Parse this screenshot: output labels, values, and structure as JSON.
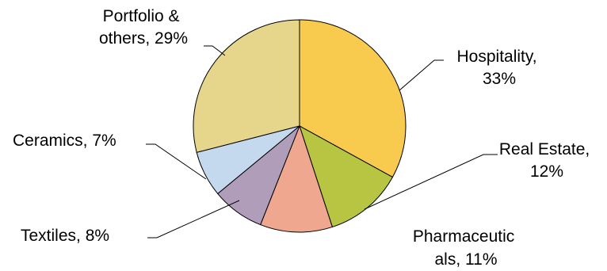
{
  "chart_data": {
    "type": "pie",
    "title": "",
    "slices": [
      {
        "name": "Hospitality",
        "value": 33,
        "color": "#f8cb4f",
        "label_lines": [
          "Hospitality,",
          "33%"
        ]
      },
      {
        "name": "Real Estate",
        "value": 12,
        "color": "#b8c542",
        "label_lines": [
          "Real Estate,",
          "12%"
        ]
      },
      {
        "name": "Pharmaceuticals",
        "value": 11,
        "color": "#efa78f",
        "label_lines": [
          "Pharmaceutic",
          "als, 11%"
        ]
      },
      {
        "name": "Textiles",
        "value": 8,
        "color": "#b09db9",
        "label_lines": [
          "Textiles, 8%"
        ]
      },
      {
        "name": "Ceramics",
        "value": 7,
        "color": "#c4d8ee",
        "label_lines": [
          "Ceramics, 7%"
        ]
      },
      {
        "name": "Portfolio & others",
        "value": 29,
        "color": "#e5d68c",
        "label_lines": [
          "Portfolio &",
          "others, 29%"
        ]
      }
    ],
    "start_angle_deg": 0,
    "direction": "clockwise",
    "legend": "none",
    "label_style": "category-and-percent"
  }
}
